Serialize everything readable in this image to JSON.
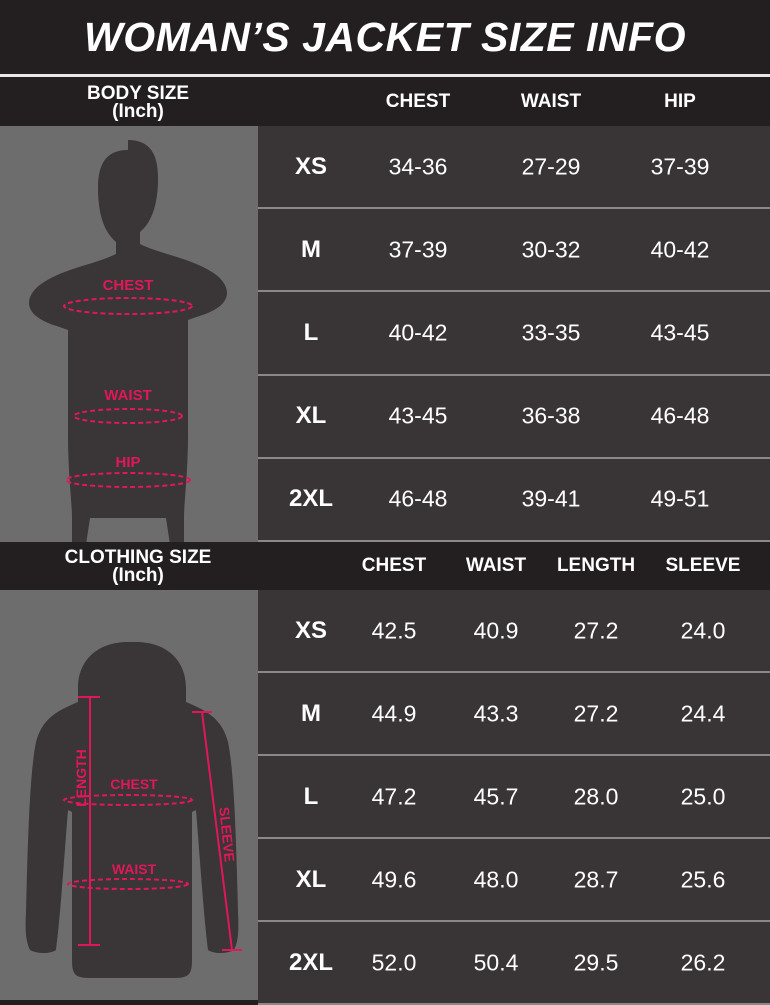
{
  "title": "WOMAN’S JACKET SIZE INFO",
  "colors": {
    "accent": "#e0185a",
    "background": "#231f20",
    "cell": "#393435",
    "panel": "#6e6d6e"
  },
  "body_size": {
    "label": "BODY SIZE",
    "unit": "(Inch)",
    "columns": [
      "CHEST",
      "WAIST",
      "HIP"
    ],
    "figure_labels": {
      "chest": "CHEST",
      "waist": "WAIST",
      "hip": "HIP"
    },
    "rows": [
      {
        "size": "XS",
        "values": [
          "34-36",
          "27-29",
          "37-39"
        ]
      },
      {
        "size": "M",
        "values": [
          "37-39",
          "30-32",
          "40-42"
        ]
      },
      {
        "size": "L",
        "values": [
          "40-42",
          "33-35",
          "43-45"
        ]
      },
      {
        "size": "XL",
        "values": [
          "43-45",
          "36-38",
          "46-48"
        ]
      },
      {
        "size": "2XL",
        "values": [
          "46-48",
          "39-41",
          "49-51"
        ]
      }
    ]
  },
  "clothing_size": {
    "label": "CLOTHING SIZE",
    "unit": "(Inch)",
    "columns": [
      "CHEST",
      "WAIST",
      "LENGTH",
      "SLEEVE"
    ],
    "figure_labels": {
      "length": "LENGTH",
      "chest": "CHEST",
      "waist": "WAIST",
      "sleeve": "SLEEVE"
    },
    "rows": [
      {
        "size": "XS",
        "values": [
          "42.5",
          "40.9",
          "27.2",
          "24.0"
        ]
      },
      {
        "size": "M",
        "values": [
          "44.9",
          "43.3",
          "27.2",
          "24.4"
        ]
      },
      {
        "size": "L",
        "values": [
          "47.2",
          "45.7",
          "28.0",
          "25.0"
        ]
      },
      {
        "size": "XL",
        "values": [
          "49.6",
          "48.0",
          "28.7",
          "25.6"
        ]
      },
      {
        "size": "2XL",
        "values": [
          "52.0",
          "50.4",
          "29.5",
          "26.2"
        ]
      }
    ]
  }
}
